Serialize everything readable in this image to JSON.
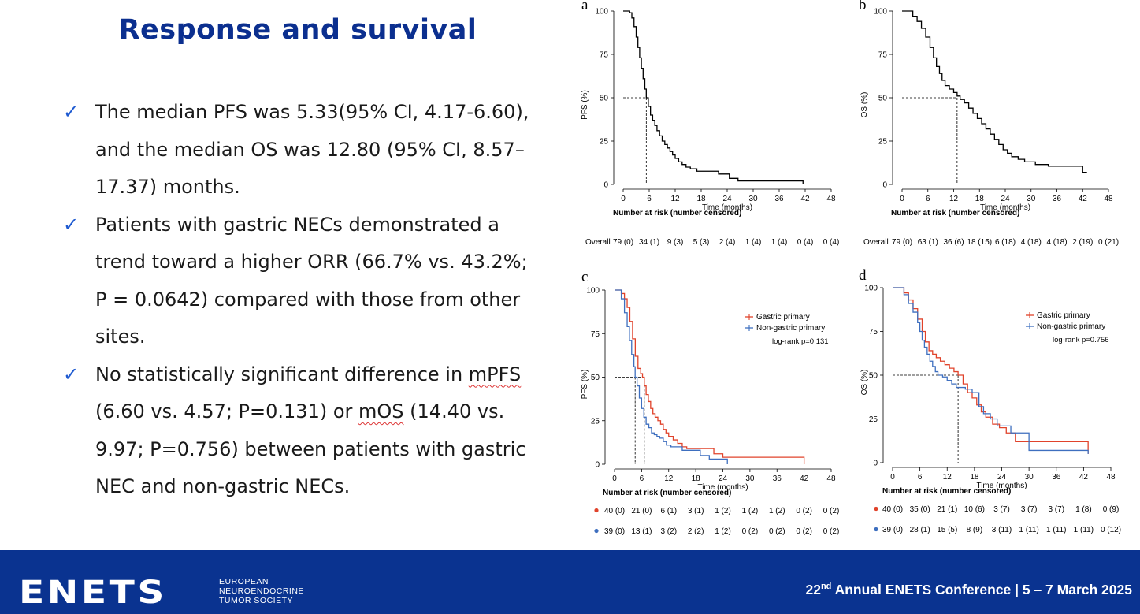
{
  "slide": {
    "title": "Response and survival",
    "bullets": [
      {
        "parts": [
          {
            "text": "The median PFS was 5.33(95% CI, 4.17-6.60), and the median OS was 12.80 (95% CI, 8.57–17.37) months."
          }
        ]
      },
      {
        "parts": [
          {
            "text": "Patients with gastric NECs demonstrated a trend toward a higher ORR (66.7% vs. 43.2%; P = 0.0642) compared with those from other sites."
          }
        ]
      },
      {
        "parts": [
          {
            "text": "No statistically significant difference in "
          },
          {
            "text": "mPFS",
            "underline": true
          },
          {
            "text": " (6.60 vs. 4.57; P=0.131) or "
          },
          {
            "text": "mOS",
            "underline": true
          },
          {
            "text": " (14.40 vs. 9.97; P=0.756) between patients with gastric NEC and non-gastric NECs."
          }
        ]
      }
    ]
  },
  "footer": {
    "logo": "ENETS",
    "society_lines": [
      "EUROPEAN",
      "NEUROENDOCRINE",
      "TUMOR SOCIETY"
    ],
    "conference_ordinal": "22",
    "conference_suffix": "nd",
    "conference_rest": " Annual ENETS Conference | 5 – 7 March 2025"
  },
  "chart_data": [
    {
      "panel": "a",
      "type": "line",
      "ylabel": "PFS (%)",
      "xlabel": "Time (months)",
      "xlim": [
        0,
        48
      ],
      "ylim": [
        0,
        100
      ],
      "xticks": [
        0,
        6,
        12,
        18,
        24,
        30,
        36,
        42,
        48
      ],
      "yticks": [
        0,
        25,
        50,
        75,
        100
      ],
      "median": [
        5.33,
        50
      ],
      "series": [
        {
          "color": "#000000",
          "x": [
            0,
            1.5,
            2,
            2.5,
            3,
            3.4,
            3.8,
            4.2,
            4.6,
            5,
            5.33,
            5.8,
            6.3,
            6.8,
            7.3,
            7.8,
            8.4,
            9,
            9.6,
            10.2,
            10.8,
            11.4,
            12,
            12.8,
            13.6,
            14.5,
            15.5,
            17,
            20.5,
            22,
            24.5,
            26.5,
            41.5
          ],
          "y": [
            100,
            99,
            96,
            91,
            85,
            79,
            73,
            67,
            61,
            55,
            50,
            45,
            40,
            37,
            34,
            31,
            28,
            25,
            23,
            21,
            19,
            17,
            15,
            13,
            11.5,
            10,
            9,
            7.6,
            7.6,
            6,
            3.5,
            2,
            0
          ]
        }
      ],
      "risk_table": {
        "title": "Number at risk (number censored)",
        "rows": [
          {
            "label": "Overall",
            "values": [
              "79 (0)",
              "34 (1)",
              "9 (3)",
              "5 (3)",
              "2 (4)",
              "1 (4)",
              "1 (4)",
              "0 (4)",
              "0 (4)"
            ]
          }
        ]
      }
    },
    {
      "panel": "b",
      "type": "line",
      "ylabel": "OS (%)",
      "xlabel": "Time (months)",
      "xlim": [
        0,
        48
      ],
      "ylim": [
        0,
        100
      ],
      "xticks": [
        0,
        6,
        12,
        18,
        24,
        30,
        36,
        42,
        48
      ],
      "yticks": [
        0,
        25,
        50,
        75,
        100
      ],
      "median": [
        12.8,
        50
      ],
      "series": [
        {
          "color": "#000000",
          "x": [
            0,
            2.5,
            3.5,
            4.5,
            5.5,
            6.5,
            7.3,
            8,
            8.7,
            9.3,
            10,
            11,
            12,
            12.8,
            13.5,
            14.5,
            15.5,
            16.5,
            17.5,
            18.5,
            19.5,
            20.5,
            21.5,
            22.5,
            23.5,
            24.5,
            25.5,
            27,
            28.5,
            31,
            34,
            37,
            40,
            42,
            43
          ],
          "y": [
            100,
            97,
            94,
            90,
            85,
            79,
            73,
            68,
            64,
            60,
            57,
            55,
            53,
            51,
            49,
            47,
            44,
            41,
            38,
            35,
            32,
            29,
            26,
            23,
            20,
            18,
            16,
            14.5,
            13,
            11.5,
            10.5,
            10.5,
            10.5,
            7,
            7
          ]
        }
      ],
      "risk_table": {
        "title": "Number at risk (number censored)",
        "rows": [
          {
            "label": "Overall",
            "values": [
              "79 (0)",
              "63 (1)",
              "36 (6)",
              "18 (15)",
              "6 (18)",
              "4 (18)",
              "4 (18)",
              "2 (19)",
              "0 (21)"
            ]
          }
        ]
      }
    },
    {
      "panel": "c",
      "type": "line",
      "ylabel": "PFS (%)",
      "xlabel": "Time (months)",
      "xlim": [
        0,
        48
      ],
      "ylim": [
        0,
        100
      ],
      "xticks": [
        0,
        6,
        12,
        18,
        24,
        30,
        36,
        42,
        48
      ],
      "yticks": [
        0,
        25,
        50,
        75,
        100
      ],
      "medians": [
        4.57,
        6.6
      ],
      "legend": {
        "entries": [
          "Gastric primary",
          "Non-gastric primary"
        ],
        "note": "log-rank p=0.131"
      },
      "series": [
        {
          "name": "Gastric primary",
          "color": "#e0432b",
          "x": [
            0,
            1.5,
            2.2,
            2.8,
            3.4,
            4,
            4.6,
            5.2,
            5.8,
            6.2,
            6.6,
            7,
            7.5,
            8,
            8.5,
            9,
            9.6,
            10.2,
            10.8,
            11.4,
            12,
            13,
            14,
            15,
            16,
            17,
            19,
            22,
            24,
            42
          ],
          "y": [
            100,
            98,
            95,
            90,
            82,
            72,
            62,
            55,
            52,
            50,
            45,
            40,
            36,
            32,
            29,
            27,
            25,
            23,
            20,
            18,
            16,
            14,
            12,
            10,
            9,
            9,
            9,
            6,
            4,
            0
          ]
        },
        {
          "name": "Non-gastric primary",
          "color": "#3e6fbf",
          "x": [
            0,
            1.5,
            2.2,
            2.8,
            3.3,
            3.8,
            4.3,
            4.57,
            5,
            5.5,
            6,
            6.5,
            7,
            7.6,
            8.2,
            8.8,
            9.4,
            10,
            10.8,
            11.5,
            12.5,
            13.5,
            15,
            17,
            19,
            21,
            23,
            25
          ],
          "y": [
            100,
            95,
            87,
            79,
            71,
            63,
            56,
            50,
            45,
            38,
            32,
            27,
            23,
            21,
            18,
            17,
            16,
            15,
            13,
            11,
            10,
            10,
            8,
            8,
            5,
            3,
            3,
            0
          ]
        }
      ],
      "risk_table": {
        "title": "Number at risk (number censored)",
        "rows": [
          {
            "color": "#e0432b",
            "values": [
              "40 (0)",
              "21 (0)",
              "6 (1)",
              "3 (1)",
              "1 (2)",
              "1 (2)",
              "1 (2)",
              "0 (2)",
              "0 (2)"
            ]
          },
          {
            "color": "#3e6fbf",
            "values": [
              "39 (0)",
              "13 (1)",
              "3 (2)",
              "2 (2)",
              "1 (2)",
              "0 (2)",
              "0 (2)",
              "0 (2)",
              "0 (2)"
            ]
          }
        ]
      }
    },
    {
      "panel": "d",
      "type": "line",
      "ylabel": "OS (%)",
      "xlabel": "Time (months)",
      "xlim": [
        0,
        48
      ],
      "ylim": [
        0,
        100
      ],
      "xticks": [
        0,
        6,
        12,
        18,
        24,
        30,
        36,
        42,
        48
      ],
      "yticks": [
        0,
        25,
        50,
        75,
        100
      ],
      "medians": [
        9.97,
        14.4
      ],
      "legend": {
        "entries": [
          "Gastric primary",
          "Non-gastric primary"
        ],
        "note": "log-rank p=0.756"
      },
      "series": [
        {
          "name": "Gastric primary",
          "color": "#e0432b",
          "x": [
            0,
            2.5,
            3.5,
            4.5,
            5.5,
            6.5,
            7.2,
            8,
            8.8,
            9.6,
            10.5,
            11.5,
            12.5,
            13.5,
            14.4,
            15.5,
            16.5,
            17.5,
            18.5,
            19.5,
            20.5,
            22,
            23.5,
            25,
            27,
            30,
            42,
            43
          ],
          "y": [
            100,
            97,
            93,
            88,
            82,
            75,
            69,
            64,
            62,
            60,
            58,
            56,
            54,
            52,
            50,
            45,
            40,
            37,
            33,
            29,
            26,
            22,
            20,
            17,
            12,
            12,
            12,
            5
          ]
        },
        {
          "name": "Non-gastric primary",
          "color": "#3e6fbf",
          "x": [
            0,
            2.5,
            3.5,
            4.5,
            5.5,
            6,
            6.5,
            7,
            7.6,
            8.2,
            8.8,
            9.4,
            9.97,
            11,
            12,
            13,
            14,
            16,
            17.5,
            19,
            20,
            21.5,
            23,
            26,
            30,
            42,
            43
          ],
          "y": [
            100,
            96,
            91,
            86,
            80,
            75,
            70,
            66,
            62,
            58,
            55,
            52,
            50,
            49,
            47,
            45,
            43,
            42,
            40,
            32,
            28,
            25,
            21,
            17,
            7,
            7,
            5
          ]
        }
      ],
      "risk_table": {
        "title": "Number at risk (number censored)",
        "rows": [
          {
            "color": "#e0432b",
            "values": [
              "40 (0)",
              "35 (0)",
              "21 (1)",
              "10 (6)",
              "3 (7)",
              "3 (7)",
              "3 (7)",
              "1 (8)",
              "0 (9)"
            ]
          },
          {
            "color": "#3e6fbf",
            "values": [
              "39 (0)",
              "28 (1)",
              "15 (5)",
              "8 (9)",
              "3 (11)",
              "1 (11)",
              "1 (11)",
              "1 (11)",
              "0 (12)"
            ]
          }
        ]
      }
    }
  ]
}
